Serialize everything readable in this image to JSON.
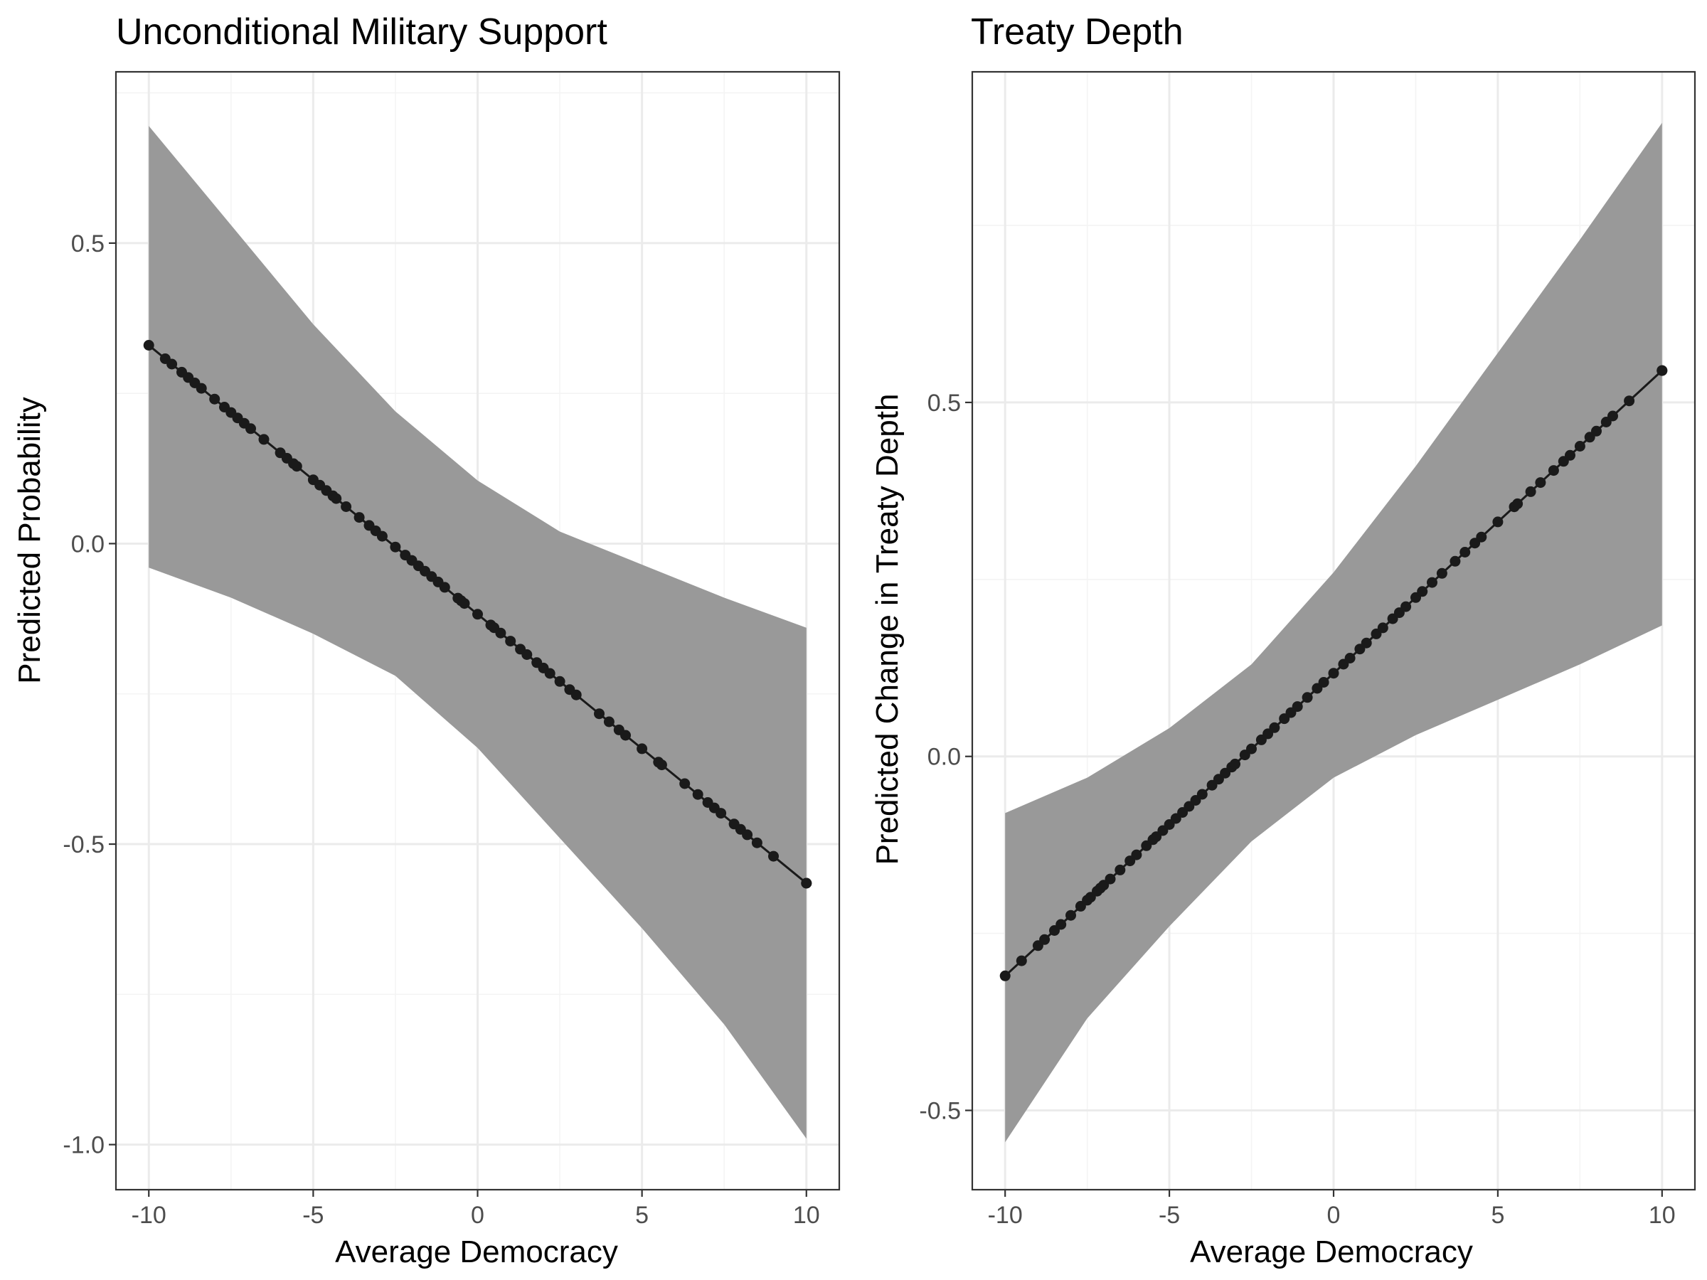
{
  "chart_data": [
    {
      "type": "line",
      "title": "Unconditional Military Support",
      "xlabel": "Average Democracy",
      "ylabel": "Predicted Probability",
      "xlim": [
        -11,
        11
      ],
      "ylim": [
        -1.075,
        0.785
      ],
      "xticks": [
        -10,
        -5,
        0,
        5,
        10
      ],
      "xtick_labels": [
        "-10",
        "-5",
        "0",
        "5",
        "10"
      ],
      "yticks": [
        0.5,
        0.0,
        -0.5,
        -1.0
      ],
      "ytick_labels": [
        "0.5",
        "0.0",
        "-0.5",
        "-1.0"
      ],
      "grid": true,
      "series": [
        {
          "line": {
            "x": [
              -10,
              10
            ],
            "y": [
              0.33,
              -0.565
            ]
          },
          "band": {
            "x": [
              -10,
              -7.5,
              -5,
              -2.5,
              0,
              2.5,
              5,
              7.5,
              10
            ],
            "upper": [
              0.695,
              0.53,
              0.365,
              0.22,
              0.105,
              0.02,
              -0.035,
              -0.09,
              -0.14
            ],
            "lower": [
              -0.04,
              -0.09,
              -0.15,
              -0.22,
              -0.34,
              -0.49,
              -0.64,
              -0.8,
              -0.99
            ]
          },
          "points_x": [
            -10,
            -9.5,
            -9.3,
            -9,
            -8.8,
            -8.6,
            -8.4,
            -8,
            -7.7,
            -7.5,
            -7.3,
            -7.1,
            -6.9,
            -6.5,
            -6,
            -5.8,
            -5.6,
            -5.5,
            -5,
            -4.8,
            -4.6,
            -4.4,
            -4.3,
            -4,
            -3.6,
            -3.3,
            -3.1,
            -2.9,
            -2.5,
            -2.2,
            -2,
            -1.8,
            -1.6,
            -1.4,
            -1.2,
            -1,
            -0.6,
            -0.5,
            -0.4,
            0,
            0.4,
            0.5,
            0.7,
            1,
            1.3,
            1.5,
            1.8,
            2,
            2.2,
            2.5,
            2.8,
            3,
            3.7,
            4,
            4.3,
            4.5,
            5,
            5.5,
            5.6,
            6.3,
            6.7,
            7,
            7.2,
            7.4,
            7.8,
            8,
            8.2,
            8.5,
            9,
            10,
            10
          ]
        }
      ]
    },
    {
      "type": "line",
      "title": "Treaty Depth",
      "xlabel": "Average Democracy",
      "ylabel": "Predicted Change in Treaty Depth",
      "xlim": [
        -11,
        11
      ],
      "ylim": [
        -0.612,
        0.967
      ],
      "xticks": [
        -10,
        -5,
        0,
        5,
        10
      ],
      "xtick_labels": [
        "-10",
        "-5",
        "0",
        "5",
        "10"
      ],
      "yticks": [
        0.5,
        0.0,
        -0.5
      ],
      "ytick_labels": [
        "0.5",
        "0.0",
        "-0.5"
      ],
      "grid": true,
      "series": [
        {
          "line": {
            "x": [
              -10,
              10
            ],
            "y": [
              -0.31,
              0.545
            ]
          },
          "band": {
            "x": [
              -10,
              -7.5,
              -5,
              -2.5,
              0,
              2.5,
              5,
              7.5,
              10
            ],
            "upper": [
              -0.08,
              -0.03,
              0.04,
              0.13,
              0.26,
              0.41,
              0.57,
              0.73,
              0.895
            ],
            "lower": [
              -0.545,
              -0.37,
              -0.24,
              -0.12,
              -0.03,
              0.03,
              0.08,
              0.13,
              0.185
            ]
          },
          "points_x": [
            -10,
            -9.5,
            -9,
            -8.8,
            -8.5,
            -8.3,
            -8,
            -7.7,
            -7.5,
            -7.4,
            -7.2,
            -7.1,
            -7,
            -6.8,
            -6.5,
            -6.2,
            -6,
            -5.7,
            -5.5,
            -5.4,
            -5.2,
            -5,
            -4.8,
            -4.6,
            -4.4,
            -4.2,
            -4,
            -3.7,
            -3.5,
            -3.3,
            -3.1,
            -3,
            -2.7,
            -2.5,
            -2.2,
            -2,
            -1.8,
            -1.5,
            -1.3,
            -1.1,
            -0.8,
            -0.5,
            -0.3,
            0,
            0.3,
            0.5,
            0.8,
            1,
            1.3,
            1.5,
            1.8,
            2,
            2.2,
            2.5,
            2.7,
            3,
            3.3,
            3.7,
            4,
            4.3,
            4.5,
            5,
            5.5,
            5.6,
            6,
            6.3,
            6.7,
            7,
            7.2,
            7.5,
            7.8,
            8,
            8.3,
            8.5,
            9,
            10,
            10
          ]
        }
      ]
    }
  ]
}
